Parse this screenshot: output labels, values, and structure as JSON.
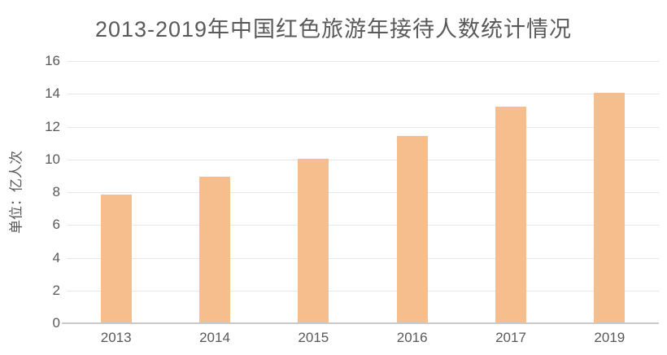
{
  "chart_data": {
    "type": "bar",
    "title": "2013-2019年中国红色旅游年接待人数统计情况",
    "categories": [
      "2013",
      "2014",
      "2015",
      "2016",
      "2017",
      "2019"
    ],
    "values": [
      7.85,
      8.95,
      10.05,
      11.45,
      13.2,
      14.05
    ],
    "xlabel": "",
    "ylabel": "单位：亿人次",
    "ylim": [
      0,
      16
    ],
    "ytick_step": 2,
    "yticks": [
      0,
      2,
      4,
      6,
      8,
      10,
      12,
      14,
      16
    ],
    "grid": true,
    "legend": "none"
  },
  "colors": {
    "bar": "#F6BE8C",
    "text": "#595959",
    "gridline": "#E7E7E7",
    "axis_line": "#C9C9C9",
    "background": "#FFFFFF"
  }
}
